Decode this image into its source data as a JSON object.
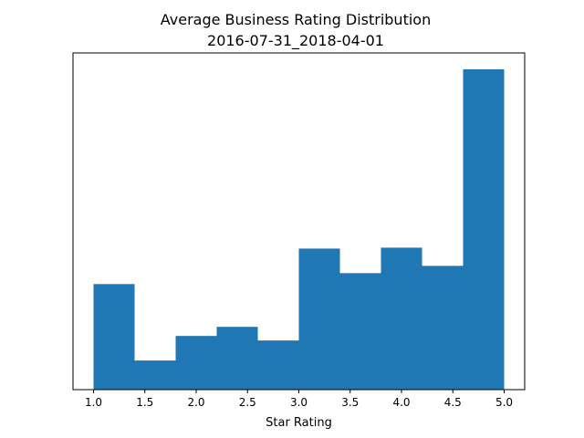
{
  "chart_data": {
    "type": "bar",
    "title": "Average Business Rating Distribution",
    "subtitle": "2016-07-31_2018-04-01",
    "xlabel": "Star Rating",
    "ylabel": "",
    "bin_edges": [
      1.0,
      1.4,
      1.8,
      2.2,
      2.6,
      3.0,
      3.4,
      3.8,
      4.2,
      4.6,
      5.0
    ],
    "values": [
      116,
      32,
      59,
      69,
      54,
      155,
      128,
      156,
      136,
      352
    ],
    "xlim": [
      0.8,
      5.2
    ],
    "ylim": [
      0,
      370
    ],
    "x_ticks": [
      "1.0",
      "1.5",
      "2.0",
      "2.5",
      "3.0",
      "3.5",
      "4.0",
      "4.5",
      "5.0"
    ],
    "y_ticks_visible": false,
    "grid": false,
    "bar_color": "#1f77b4"
  }
}
